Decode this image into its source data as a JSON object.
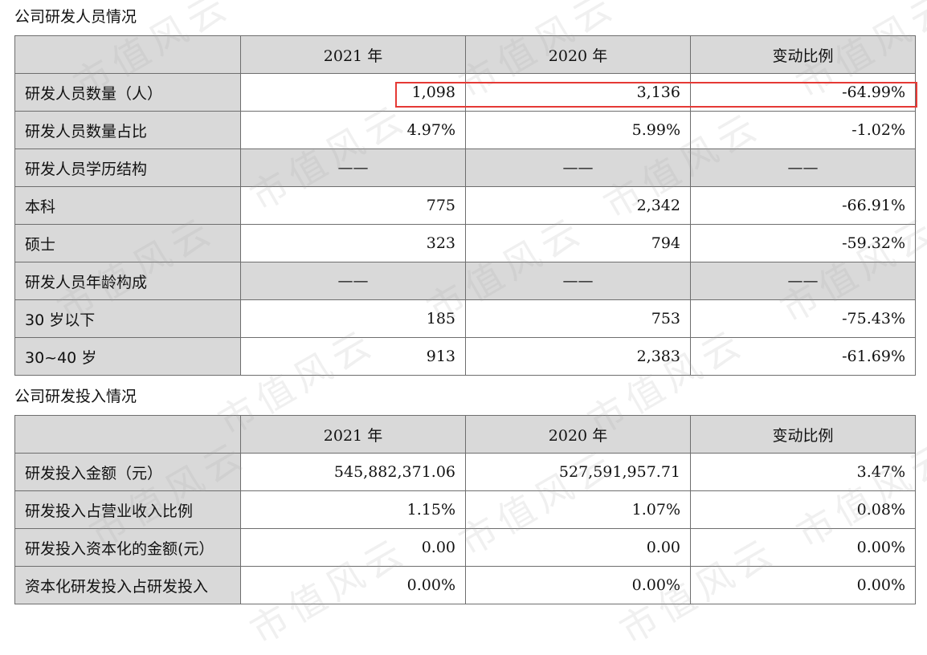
{
  "table1": {
    "title": "公司研发人员情况",
    "headers": [
      "",
      "2021 年",
      "2020 年",
      "变动比例"
    ],
    "rows": [
      {
        "label": "研发人员数量（人）",
        "v2021": "1,098",
        "v2020": "3,136",
        "change": "-64.99%",
        "shade": false
      },
      {
        "label": "研发人员数量占比",
        "v2021": "4.97%",
        "v2020": "5.99%",
        "change": "-1.02%",
        "shade": false
      },
      {
        "label": "研发人员学历结构",
        "v2021": "——",
        "v2020": "——",
        "change": "——",
        "shade": true
      },
      {
        "label": "本科",
        "v2021": "775",
        "v2020": "2,342",
        "change": "-66.91%",
        "shade": false
      },
      {
        "label": "硕士",
        "v2021": "323",
        "v2020": "794",
        "change": "-59.32%",
        "shade": false
      },
      {
        "label": "研发人员年龄构成",
        "v2021": "——",
        "v2020": "——",
        "change": "——",
        "shade": true
      },
      {
        "label": "30 岁以下",
        "v2021": "185",
        "v2020": "753",
        "change": "-75.43%",
        "shade": false
      },
      {
        "label": "30~40 岁",
        "v2021": "913",
        "v2020": "2,383",
        "change": "-61.69%",
        "shade": false
      }
    ]
  },
  "table2": {
    "title": "公司研发投入情况",
    "headers": [
      "",
      "2021 年",
      "2020 年",
      "变动比例"
    ],
    "rows": [
      {
        "label": "研发投入金额（元）",
        "v2021": "545,882,371.06",
        "v2020": "527,591,957.71",
        "change": "3.47%",
        "shade": false
      },
      {
        "label": "研发投入占营业收入比例",
        "v2021": "1.15%",
        "v2020": "1.07%",
        "change": "0.08%",
        "shade": false
      },
      {
        "label": "研发投入资本化的金额(元）",
        "v2021": "0.00",
        "v2020": "0.00",
        "change": "0.00%",
        "shade": false
      },
      {
        "label": "资本化研发投入占研发投入",
        "v2021": "0.00%",
        "v2020": "0.00%",
        "change": "0.00%",
        "shade": false
      }
    ]
  },
  "watermark": "市值风云",
  "colors": {
    "header_bg": "#d9d9d9",
    "border": "#6e6e6e",
    "highlight": "#e53935"
  }
}
